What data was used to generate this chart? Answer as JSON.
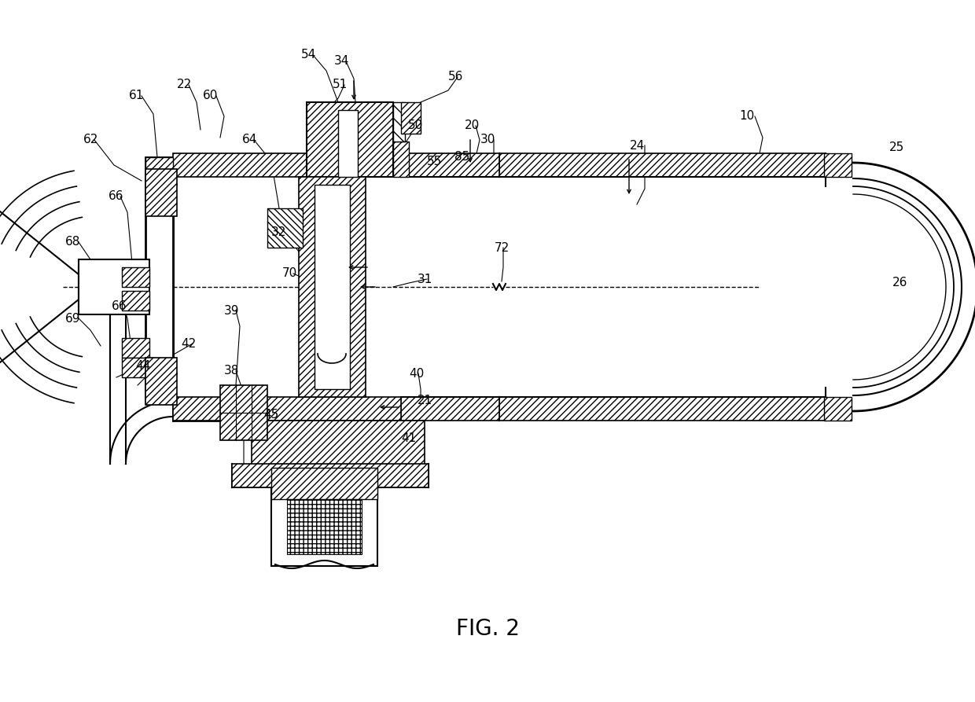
{
  "title": "FIG. 2",
  "bg_color": "#ffffff",
  "line_color": "#000000",
  "fig_width": 12.4,
  "fig_height": 8.93,
  "dpi": 100
}
